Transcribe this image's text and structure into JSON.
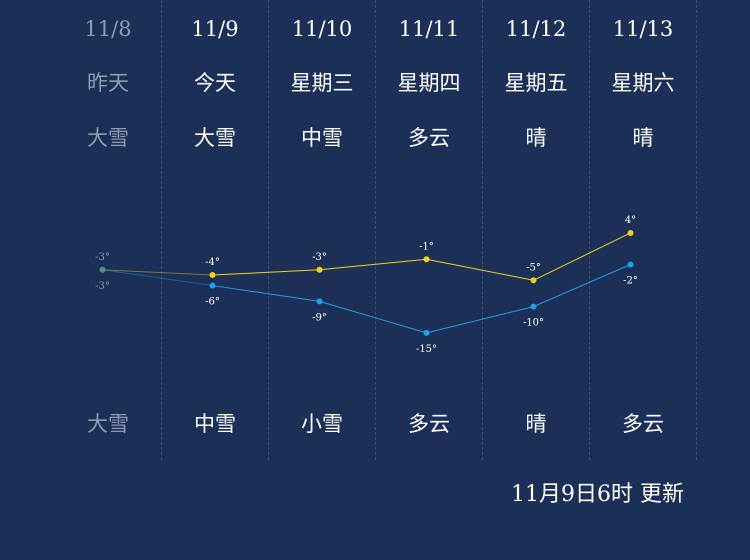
{
  "days": [
    {
      "date": "11/8",
      "weekday": "昨天",
      "day_weather": "大雪",
      "night_weather": "大雪",
      "high": -3,
      "low": -3,
      "high_label": "-3°",
      "low_label": "-3°"
    },
    {
      "date": "11/9",
      "weekday": "今天",
      "day_weather": "大雪",
      "night_weather": "中雪",
      "high": -4,
      "low": -6,
      "high_label": "-4°",
      "low_label": "-6°"
    },
    {
      "date": "11/10",
      "weekday": "星期三",
      "day_weather": "中雪",
      "night_weather": "小雪",
      "high": -3,
      "low": -9,
      "high_label": "-3°",
      "low_label": "-9°"
    },
    {
      "date": "11/11",
      "weekday": "星期四",
      "day_weather": "多云",
      "night_weather": "多云",
      "high": -1,
      "low": -15,
      "high_label": "-1°",
      "low_label": "-15°"
    },
    {
      "date": "11/12",
      "weekday": "星期五",
      "day_weather": "晴",
      "night_weather": "晴",
      "high": -5,
      "low": -10,
      "high_label": "-5°",
      "low_label": "-10°"
    },
    {
      "date": "11/13",
      "weekday": "星期六",
      "day_weather": "晴",
      "night_weather": "多云",
      "high": 4,
      "low": -2,
      "high_label": "4°",
      "low_label": "-2°"
    }
  ],
  "update_time": "11月9日6时 更新",
  "colors": {
    "background": "#1b2f57",
    "high_line": "#f2d21a",
    "low_line": "#1aa3e8",
    "past_text": "#8d9bb6"
  },
  "chart_data": {
    "type": "line",
    "categories": [
      "11/8",
      "11/9",
      "11/10",
      "11/11",
      "11/12",
      "11/13"
    ],
    "series": [
      {
        "values": [
          -3,
          -4,
          -3,
          -1,
          -5,
          4
        ]
      },
      {
        "values": [
          -3,
          -6,
          -9,
          -15,
          -10,
          -2
        ]
      }
    ],
    "grid": false
  }
}
